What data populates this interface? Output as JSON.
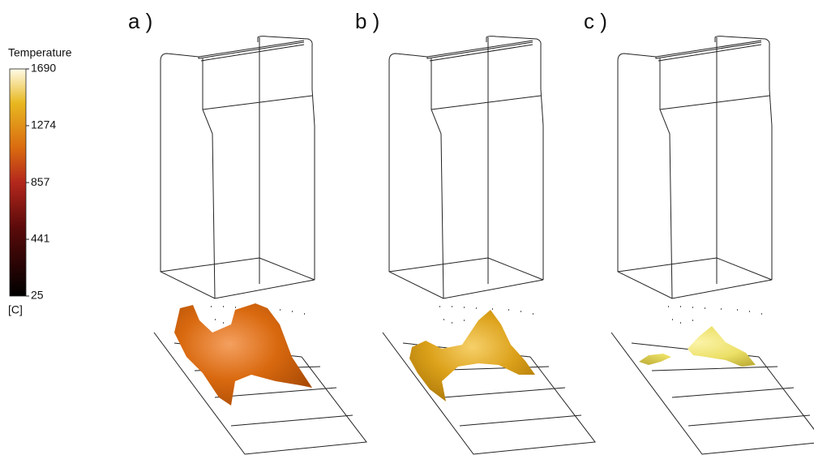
{
  "panels": [
    {
      "label": "a )"
    },
    {
      "label": "b )"
    },
    {
      "label": "c )"
    }
  ],
  "legend": {
    "title": "Temperature",
    "unit": "[C]",
    "range": [
      25,
      1690
    ],
    "ticks": [
      25,
      441,
      857,
      1274,
      1690
    ]
  }
}
